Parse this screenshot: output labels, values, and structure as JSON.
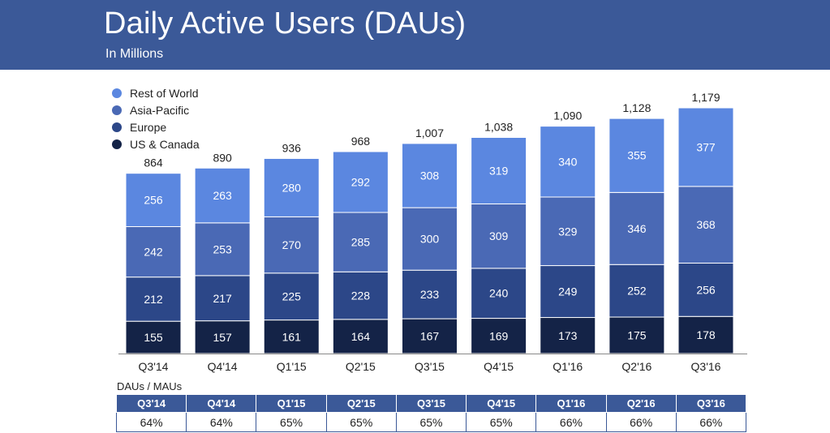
{
  "header": {
    "title": "Daily Active Users (DAUs)",
    "subtitle": "In Millions"
  },
  "colors": {
    "header_bg": "#3b5998",
    "rest_of_world": "#5b87e0",
    "asia_pacific": "#4a69b5",
    "europe": "#2c4788",
    "us_canada": "#142347"
  },
  "chart_data": {
    "type": "bar",
    "stacked": true,
    "title": "Daily Active Users (DAUs)",
    "subtitle": "In Millions",
    "categories": [
      "Q3'14",
      "Q4'14",
      "Q1'15",
      "Q2'15",
      "Q3'15",
      "Q4'15",
      "Q1'16",
      "Q2'16",
      "Q3'16"
    ],
    "series": [
      {
        "name": "US & Canada",
        "values": [
          155,
          157,
          161,
          164,
          167,
          169,
          173,
          175,
          178
        ]
      },
      {
        "name": "Europe",
        "values": [
          212,
          217,
          225,
          228,
          233,
          240,
          249,
          252,
          256
        ]
      },
      {
        "name": "Asia-Pacific",
        "values": [
          242,
          253,
          270,
          285,
          300,
          309,
          329,
          346,
          368
        ]
      },
      {
        "name": "Rest of World",
        "values": [
          256,
          263,
          280,
          292,
          308,
          319,
          340,
          355,
          377
        ]
      }
    ],
    "totals": [
      "864",
      "890",
      "936",
      "968",
      "1,007",
      "1,038",
      "1,090",
      "1,128",
      "1,179"
    ],
    "legend": [
      "Rest of World",
      "Asia-Pacific",
      "Europe",
      "US & Canada"
    ],
    "legend_position": "top-left",
    "ylim": [
      0,
      1179
    ],
    "grid": false
  },
  "ratio": {
    "caption": "DAUs / MAUs",
    "quarters": [
      "Q3'14",
      "Q4'14",
      "Q1'15",
      "Q2'15",
      "Q3'15",
      "Q4'15",
      "Q1'16",
      "Q2'16",
      "Q3'16"
    ],
    "values": [
      "64%",
      "64%",
      "65%",
      "65%",
      "65%",
      "65%",
      "66%",
      "66%",
      "66%"
    ]
  }
}
